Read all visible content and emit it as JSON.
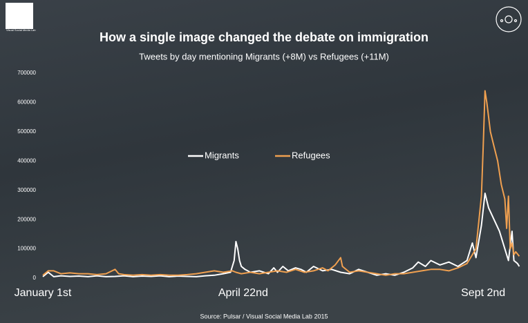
{
  "logo": "Visual Social Media Lab",
  "chart_data": {
    "type": "line",
    "title": "How a single image changed the debate on immigration",
    "subtitle": "Tweets by day mentioning Migrants (+8M) vs Refugees (+11M)",
    "source": "Source: Pulsar / Visual Social Media Lab 2015",
    "xlim": [
      0,
      265
    ],
    "xticks": [
      {
        "value": 0,
        "label": "January 1st"
      },
      {
        "value": 111,
        "label": "April 22nd"
      },
      {
        "value": 244,
        "label": "Sept 2nd"
      }
    ],
    "ylim": [
      0,
      700000
    ],
    "yticks": [
      0,
      100000,
      200000,
      300000,
      400000,
      500000,
      600000,
      700000
    ],
    "grid": false,
    "legend": "center",
    "series": [
      {
        "name": "Migrants",
        "color": "#ffffff",
        "x": [
          0,
          3,
          6,
          10,
          15,
          20,
          25,
          30,
          35,
          40,
          45,
          50,
          55,
          60,
          65,
          70,
          75,
          80,
          85,
          90,
          95,
          100,
          104,
          106,
          107,
          108,
          109,
          110,
          112,
          115,
          120,
          125,
          128,
          130,
          133,
          136,
          140,
          143,
          146,
          150,
          155,
          160,
          165,
          170,
          175,
          180,
          185,
          190,
          195,
          200,
          205,
          208,
          212,
          215,
          220,
          225,
          230,
          235,
          238,
          240,
          243,
          245,
          247,
          250,
          253,
          256,
          258,
          260,
          261,
          263,
          264
        ],
        "values": [
          5000,
          20000,
          5000,
          8000,
          6000,
          7000,
          5000,
          8000,
          5000,
          6000,
          8000,
          5000,
          7000,
          6000,
          8000,
          5000,
          7000,
          6000,
          5000,
          8000,
          10000,
          15000,
          20000,
          60000,
          125000,
          100000,
          60000,
          40000,
          30000,
          20000,
          25000,
          15000,
          35000,
          20000,
          40000,
          25000,
          35000,
          30000,
          20000,
          40000,
          25000,
          30000,
          20000,
          15000,
          30000,
          20000,
          10000,
          15000,
          10000,
          20000,
          35000,
          55000,
          40000,
          60000,
          45000,
          55000,
          40000,
          60000,
          120000,
          70000,
          180000,
          290000,
          240000,
          200000,
          160000,
          100000,
          60000,
          160000,
          60000,
          50000,
          40000
        ]
      },
      {
        "name": "Refugees",
        "color": "#f0a050",
        "x": [
          0,
          3,
          6,
          10,
          15,
          20,
          25,
          30,
          35,
          40,
          42,
          45,
          50,
          55,
          60,
          65,
          70,
          75,
          80,
          85,
          90,
          95,
          100,
          105,
          107,
          110,
          115,
          120,
          125,
          130,
          135,
          140,
          145,
          150,
          155,
          158,
          162,
          165,
          166,
          170,
          175,
          180,
          185,
          190,
          195,
          200,
          205,
          210,
          215,
          220,
          225,
          230,
          235,
          240,
          243,
          244,
          245,
          246,
          248,
          250,
          252,
          254,
          256,
          257,
          258,
          259,
          260,
          261,
          262,
          264
        ],
        "values": [
          10000,
          25000,
          25000,
          15000,
          18000,
          15000,
          15000,
          12000,
          15000,
          30000,
          15000,
          12000,
          10000,
          12000,
          10000,
          12000,
          10000,
          10000,
          12000,
          15000,
          20000,
          25000,
          20000,
          25000,
          20000,
          15000,
          20000,
          15000,
          20000,
          25000,
          20000,
          30000,
          20000,
          25000,
          35000,
          25000,
          45000,
          70000,
          40000,
          20000,
          25000,
          20000,
          15000,
          10000,
          15000,
          15000,
          20000,
          25000,
          30000,
          30000,
          25000,
          35000,
          50000,
          100000,
          280000,
          450000,
          640000,
          600000,
          500000,
          450000,
          400000,
          320000,
          270000,
          170000,
          280000,
          100000,
          120000,
          80000,
          90000,
          75000
        ]
      }
    ]
  }
}
